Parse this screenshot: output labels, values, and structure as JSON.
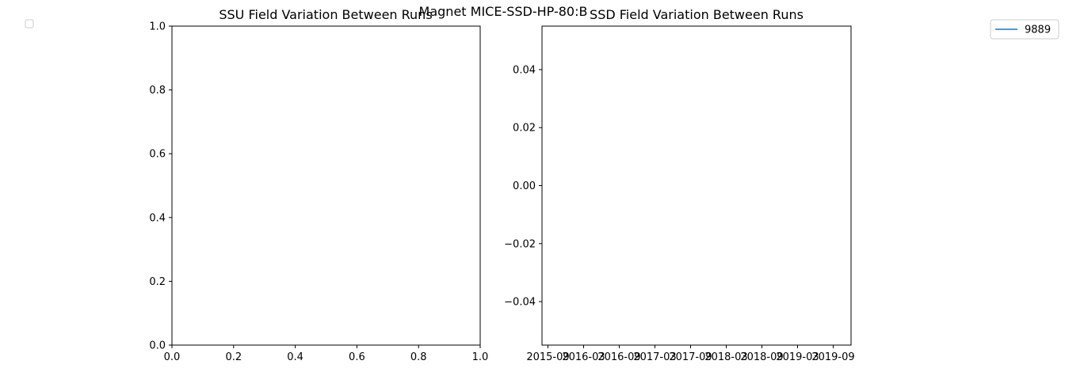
{
  "figure": {
    "suptitle": "Magnet MICE-SSD-HP-80:B"
  },
  "chart_data": [
    {
      "type": "line",
      "title": "SSU Field Variation Between Runs",
      "xlabel": "",
      "ylabel": "",
      "xlim": [
        0.0,
        1.0
      ],
      "ylim": [
        0.0,
        1.0
      ],
      "x_ticks": [
        "0.0",
        "0.2",
        "0.4",
        "0.6",
        "0.8",
        "1.0"
      ],
      "y_ticks": [
        "0.0",
        "0.2",
        "0.4",
        "0.6",
        "0.8",
        "1.0"
      ],
      "grid": false,
      "series": [],
      "legend": {
        "placement": "upper-left-outside",
        "entries": []
      }
    },
    {
      "type": "line",
      "title": "SSD Field Variation Between Runs",
      "xlabel": "",
      "ylabel": "",
      "x_scale": "date",
      "xlim": [
        "2015-08",
        "2019-12"
      ],
      "ylim": [
        -0.055,
        0.055
      ],
      "x_ticks": [
        "2015-09",
        "2016-03",
        "2016-09",
        "2017-03",
        "2017-09",
        "2018-03",
        "2018-09",
        "2019-03",
        "2019-09"
      ],
      "y_ticks": [
        "0.04",
        "0.02",
        "0.00",
        "−0.02",
        "−0.04"
      ],
      "grid": false,
      "series": [
        {
          "name": "9889",
          "color": "#1f77b4",
          "values": []
        }
      ],
      "legend": {
        "placement": "upper-right-outside",
        "entries": [
          "9889"
        ]
      }
    }
  ]
}
